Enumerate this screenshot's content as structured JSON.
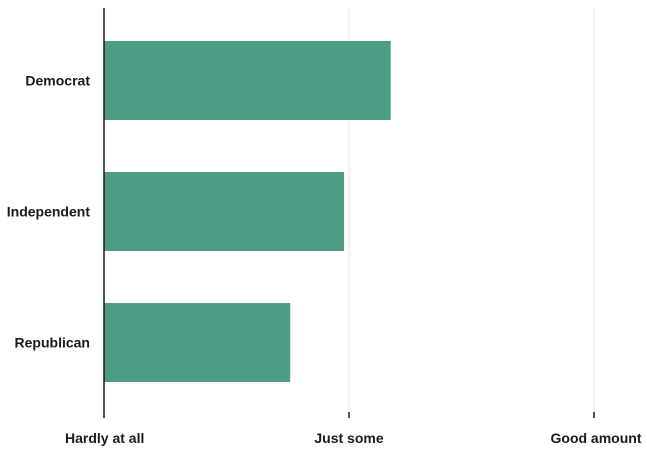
{
  "chart_data": {
    "type": "bar",
    "orientation": "horizontal",
    "title": "",
    "xlabel": "",
    "ylabel": "",
    "categories": [
      "Democrat",
      "Independent",
      "Republican"
    ],
    "values": [
      2.17,
      1.98,
      1.76
    ],
    "xlim": [
      1,
      3
    ],
    "x_ticks": [
      {
        "value": 1,
        "label": "Hardly at all"
      },
      {
        "value": 2,
        "label": "Just some"
      },
      {
        "value": 3,
        "label": "Good amount"
      }
    ],
    "bar_color": "#4d9c86",
    "grid": "vertical",
    "grid_color": "#e3eeee",
    "axis_color": "#1a1a1a",
    "legend": "none"
  }
}
